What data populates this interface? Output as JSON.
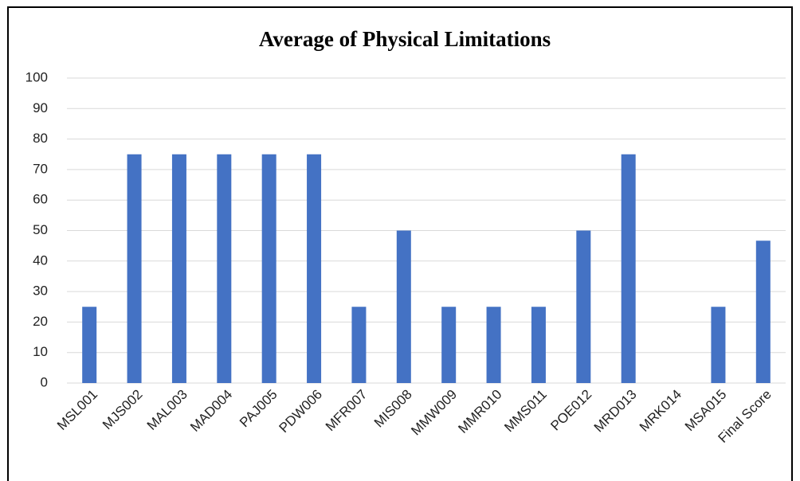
{
  "chart_data": {
    "type": "bar",
    "title": "Average of Physical Limitations",
    "categories": [
      "MSL001",
      "MJS002",
      "MAL003",
      "MAD004",
      "PAJ005",
      "PDW006",
      "MFR007",
      "MIS008",
      "MMW009",
      "MMR010",
      "MMS011",
      "POE012",
      "MRD013",
      "MRK014",
      "MSA015",
      "Final Score"
    ],
    "values": [
      25,
      75,
      75,
      75,
      75,
      75,
      25,
      50,
      25,
      25,
      25,
      50,
      75,
      0,
      25,
      46.67
    ],
    "color": "#4472c4",
    "ylim": [
      0,
      100
    ],
    "yticks": [
      0,
      10,
      20,
      30,
      40,
      50,
      60,
      70,
      80,
      90,
      100
    ],
    "grid": true
  }
}
